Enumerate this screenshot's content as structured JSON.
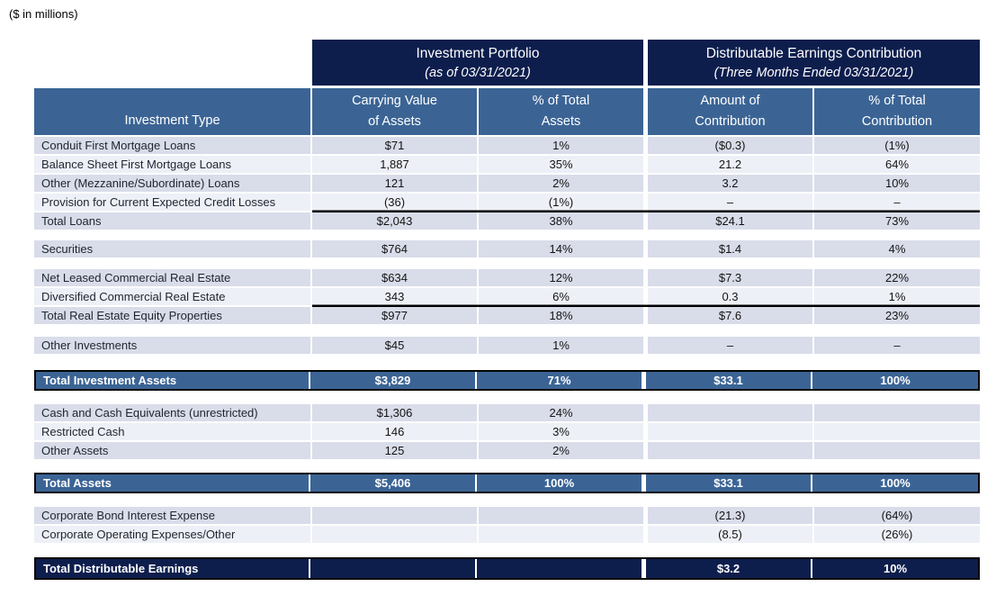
{
  "note": "($ in millions)",
  "colors": {
    "navy": "#0D1E4D",
    "blue": "#3B6495",
    "stripe_dark": "#D9DCE9",
    "stripe_light": "#EEF0F7"
  },
  "table": {
    "group_headers": [
      {
        "title": "Investment Portfolio",
        "subtitle": "(as of 03/31/2021)"
      },
      {
        "title": "Distributable Earnings Contribution",
        "subtitle": "(Three Months Ended 03/31/2021)"
      }
    ],
    "columns": [
      {
        "id": "investment-type",
        "lines": [
          "Investment Type"
        ]
      },
      {
        "id": "carrying-value-of-assets",
        "lines": [
          "Carrying Value",
          "of Assets"
        ]
      },
      {
        "id": "pct-of-total-assets",
        "lines": [
          "% of Total",
          "Assets"
        ]
      },
      {
        "id": "amount-of-contribution",
        "lines": [
          "Amount of",
          "Contribution"
        ]
      },
      {
        "id": "pct-of-total-contribution",
        "lines": [
          "% of Total",
          "Contribution"
        ]
      }
    ],
    "rows": [
      {
        "type": "data",
        "stripe": "dark",
        "label": "Conduit First Mortgage Loans",
        "values": [
          "$71",
          "1%",
          "($0.3)",
          "(1%)"
        ]
      },
      {
        "type": "data",
        "stripe": "light",
        "label": "Balance Sheet First Mortgage Loans",
        "values": [
          "1,887",
          "35%",
          "21.2",
          "64%"
        ]
      },
      {
        "type": "data",
        "stripe": "dark",
        "label": "Other (Mezzanine/Subordinate) Loans",
        "values": [
          "121",
          "2%",
          "3.2",
          "10%"
        ]
      },
      {
        "type": "data",
        "stripe": "light",
        "label": "Provision for Current Expected Credit Losses",
        "values": [
          "(36)",
          "(1%)",
          "–",
          "–"
        ]
      },
      {
        "type": "subtotal",
        "stripe": "dark",
        "label": "Total Loans",
        "values": [
          "$2,043",
          "38%",
          "$24.1",
          "73%"
        ]
      },
      {
        "type": "spacer",
        "h": 10
      },
      {
        "type": "data",
        "stripe": "dark",
        "label": "Securities",
        "values": [
          "$764",
          "14%",
          "$1.4",
          "4%"
        ]
      },
      {
        "type": "spacer",
        "h": 11
      },
      {
        "type": "data",
        "stripe": "dark",
        "label": "Net Leased Commercial Real Estate",
        "values": [
          "$634",
          "12%",
          "$7.3",
          "22%"
        ]
      },
      {
        "type": "data",
        "stripe": "light",
        "label": "Diversified Commercial Real Estate",
        "values": [
          "343",
          "6%",
          "0.3",
          "1%"
        ]
      },
      {
        "type": "subtotal",
        "stripe": "dark",
        "label": "Total Real Estate Equity Properties",
        "values": [
          "$977",
          "18%",
          "$7.6",
          "23%"
        ]
      },
      {
        "type": "spacer",
        "h": 12
      },
      {
        "type": "data",
        "stripe": "dark",
        "label": "Other Investments",
        "values": [
          "$45",
          "1%",
          "–",
          "–"
        ]
      },
      {
        "type": "spacer",
        "h": 16
      },
      {
        "type": "total-blue",
        "label": "Total Investment Assets",
        "values": [
          "$3,829",
          "71%",
          "$33.1",
          "100%"
        ]
      },
      {
        "type": "spacer",
        "h": 13
      },
      {
        "type": "data",
        "stripe": "dark",
        "label": "Cash and Cash Equivalents (unrestricted)",
        "values": [
          "$1,306",
          "24%",
          "",
          ""
        ]
      },
      {
        "type": "data",
        "stripe": "light",
        "label": "Restricted Cash",
        "values": [
          "146",
          "3%",
          "",
          ""
        ]
      },
      {
        "type": "data",
        "stripe": "dark",
        "label": "Other Assets",
        "values": [
          "125",
          "2%",
          "",
          ""
        ]
      },
      {
        "type": "spacer",
        "h": 13
      },
      {
        "type": "total-blue",
        "label": "Total Assets",
        "values": [
          "$5,406",
          "100%",
          "$33.1",
          "100%"
        ]
      },
      {
        "type": "spacer",
        "h": 13
      },
      {
        "type": "data",
        "stripe": "dark",
        "label": "Corporate Bond Interest Expense",
        "values": [
          "",
          "",
          "(21.3)",
          "(64%)"
        ]
      },
      {
        "type": "data",
        "stripe": "light",
        "label": "Corporate Operating Expenses/Other",
        "values": [
          "",
          "",
          "(8.5)",
          "(26%)"
        ]
      },
      {
        "type": "spacer",
        "h": 14
      },
      {
        "type": "total-navy",
        "label": "Total Distributable Earnings",
        "values": [
          "",
          "",
          "$3.2",
          "10%"
        ]
      }
    ]
  }
}
